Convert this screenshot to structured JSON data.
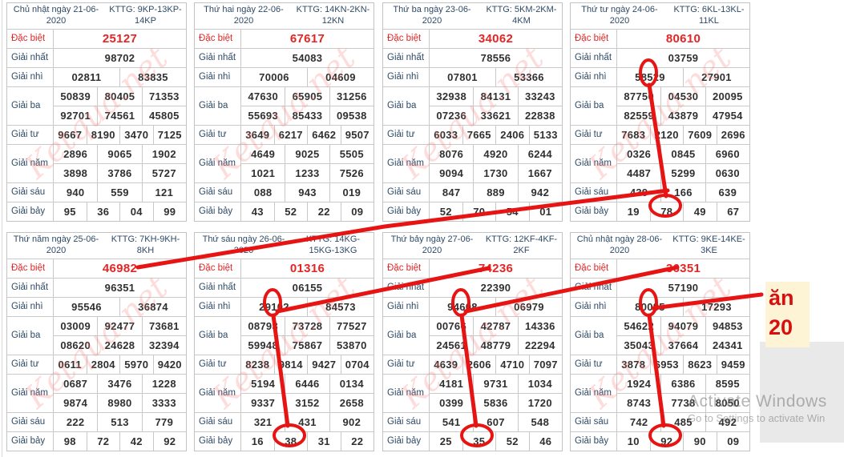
{
  "watermark": "Ketqua.net",
  "row_defs": [
    {
      "key": "db",
      "label": "Đặc biệt"
    },
    {
      "key": "nhat",
      "label": "Giải nhất"
    },
    {
      "key": "nhi",
      "label": "Giải nhì"
    },
    {
      "key": "ba",
      "label": "Giải ba"
    },
    {
      "key": "tu",
      "label": "Giải tư"
    },
    {
      "key": "nam",
      "label": "Giải năm"
    },
    {
      "key": "sau",
      "label": "Giải sáu"
    },
    {
      "key": "bay",
      "label": "Giải bảy"
    }
  ],
  "tables": [
    {
      "date": "Chủ nhật ngày 21-06-2020",
      "kttg": "KTTG: 9KP-13KP-14KP",
      "prizes": {
        "db": [
          [
            "25127"
          ]
        ],
        "nhat": [
          [
            "98702"
          ]
        ],
        "nhi": [
          [
            "02811",
            "83835"
          ]
        ],
        "ba": [
          [
            "50839",
            "80405",
            "71353"
          ],
          [
            "92701",
            "74561",
            "45805"
          ]
        ],
        "tu": [
          [
            "9667",
            "8190",
            "3470",
            "7125"
          ]
        ],
        "nam": [
          [
            "2896",
            "9065",
            "1902"
          ],
          [
            "3898",
            "3786",
            "5727"
          ]
        ],
        "sau": [
          [
            "940",
            "559",
            "121"
          ]
        ],
        "bay": [
          [
            "95",
            "36",
            "04",
            "99"
          ]
        ]
      }
    },
    {
      "date": "Thứ hai ngày 22-06-2020",
      "kttg": "KTTG: 14KN-2KN-12KN",
      "prizes": {
        "db": [
          [
            "67617"
          ]
        ],
        "nhat": [
          [
            "54083"
          ]
        ],
        "nhi": [
          [
            "70006",
            "04609"
          ]
        ],
        "ba": [
          [
            "47630",
            "65905",
            "31256"
          ],
          [
            "55693",
            "85433",
            "09538"
          ]
        ],
        "tu": [
          [
            "3649",
            "6217",
            "6462",
            "9507"
          ]
        ],
        "nam": [
          [
            "4649",
            "9025",
            "5505"
          ],
          [
            "1021",
            "1233",
            "7526"
          ]
        ],
        "sau": [
          [
            "088",
            "943",
            "019"
          ]
        ],
        "bay": [
          [
            "43",
            "52",
            "22",
            "09"
          ]
        ]
      }
    },
    {
      "date": "Thứ ba ngày 23-06-2020",
      "kttg": "KTTG: 5KM-2KM-4KM",
      "prizes": {
        "db": [
          [
            "34062"
          ]
        ],
        "nhat": [
          [
            "78556"
          ]
        ],
        "nhi": [
          [
            "07801",
            "53366"
          ]
        ],
        "ba": [
          [
            "32938",
            "84131",
            "33243"
          ],
          [
            "07236",
            "33621",
            "22838"
          ]
        ],
        "tu": [
          [
            "6033",
            "7665",
            "2406",
            "5133"
          ]
        ],
        "nam": [
          [
            "8076",
            "4920",
            "6244"
          ],
          [
            "9094",
            "1730",
            "1667"
          ]
        ],
        "sau": [
          [
            "847",
            "889",
            "942"
          ]
        ],
        "bay": [
          [
            "52",
            "70",
            "54",
            "01"
          ]
        ]
      }
    },
    {
      "date": "Thứ tư ngày 24-06-2020",
      "kttg": "KTTG: 6KL-13KL-11KL",
      "prizes": {
        "db": [
          [
            "80610"
          ]
        ],
        "nhat": [
          [
            "03759"
          ]
        ],
        "nhi": [
          [
            "58529",
            "27901"
          ]
        ],
        "ba": [
          [
            "87750",
            "04530",
            "20095"
          ],
          [
            "82559",
            "43879",
            "47954"
          ]
        ],
        "tu": [
          [
            "7683",
            "2120",
            "7609",
            "2696"
          ]
        ],
        "nam": [
          [
            "0326",
            "0845",
            "6960"
          ],
          [
            "4487",
            "5299",
            "0630"
          ]
        ],
        "sau": [
          [
            "439",
            "166",
            "639"
          ]
        ],
        "bay": [
          [
            "19",
            "78",
            "49",
            "67"
          ]
        ]
      }
    },
    {
      "date": "Thứ năm ngày 25-06-2020",
      "kttg": "KTTG: 7KH-9KH-8KH",
      "prizes": {
        "db": [
          [
            "46982"
          ]
        ],
        "nhat": [
          [
            "96351"
          ]
        ],
        "nhi": [
          [
            "95546",
            "36874"
          ]
        ],
        "ba": [
          [
            "03009",
            "92477",
            "73681"
          ],
          [
            "08620",
            "24628",
            "32394"
          ]
        ],
        "tu": [
          [
            "0611",
            "2804",
            "5970",
            "9420"
          ]
        ],
        "nam": [
          [
            "0687",
            "3476",
            "1228"
          ],
          [
            "9874",
            "8980",
            "3333"
          ]
        ],
        "sau": [
          [
            "222",
            "513",
            "779"
          ]
        ],
        "bay": [
          [
            "98",
            "72",
            "42",
            "92"
          ]
        ]
      }
    },
    {
      "date": "Thứ sáu ngày 26-06-2020",
      "kttg": "KTTG: 14KG-15KG-13KG",
      "prizes": {
        "db": [
          [
            "01316"
          ]
        ],
        "nhat": [
          [
            "06155"
          ]
        ],
        "nhi": [
          [
            "29102",
            "84573"
          ]
        ],
        "ba": [
          [
            "08793",
            "73728",
            "77527"
          ],
          [
            "59948",
            "75867",
            "53870"
          ]
        ],
        "tu": [
          [
            "8238",
            "9814",
            "9427",
            "0704"
          ]
        ],
        "nam": [
          [
            "5194",
            "6446",
            "0134"
          ],
          [
            "9337",
            "3152",
            "2658"
          ]
        ],
        "sau": [
          [
            "321",
            "431",
            "902"
          ]
        ],
        "bay": [
          [
            "16",
            "38",
            "31",
            "22"
          ]
        ]
      }
    },
    {
      "date": "Thứ bảy ngày 27-06-2020",
      "kttg": "KTTG: 12KF-4KF-2KF",
      "prizes": {
        "db": [
          [
            "74236"
          ]
        ],
        "nhat": [
          [
            "22390"
          ]
        ],
        "nhi": [
          [
            "94608",
            "06979"
          ]
        ],
        "ba": [
          [
            "00766",
            "42787",
            "14336"
          ],
          [
            "24561",
            "48779",
            "22294"
          ]
        ],
        "tu": [
          [
            "4639",
            "2606",
            "4710",
            "7097"
          ]
        ],
        "nam": [
          [
            "4181",
            "9731",
            "1034"
          ],
          [
            "0399",
            "5836",
            "1720"
          ]
        ],
        "sau": [
          [
            "541",
            "607",
            "548"
          ]
        ],
        "bay": [
          [
            "25",
            "35",
            "52",
            "46"
          ]
        ]
      }
    },
    {
      "date": "Chủ nhật ngày 28-06-2020",
      "kttg": "KTTG: 9KE-14KE-3KE",
      "prizes": {
        "db": [
          [
            "36351"
          ]
        ],
        "nhat": [
          [
            "57190"
          ]
        ],
        "nhi": [
          [
            "80085",
            "17293"
          ]
        ],
        "ba": [
          [
            "54622",
            "94079",
            "94853"
          ],
          [
            "35043",
            "37664",
            "24341"
          ]
        ],
        "tu": [
          [
            "3878",
            "6953",
            "8623",
            "9459"
          ]
        ],
        "nam": [
          [
            "1924",
            "6386",
            "8595"
          ],
          [
            "8743",
            "7738",
            "8050"
          ]
        ],
        "sau": [
          [
            "742",
            "485",
            "492"
          ]
        ],
        "bay": [
          [
            "10",
            "92",
            "90",
            "09"
          ]
        ]
      }
    }
  ],
  "annotation": {
    "color": "#e71414",
    "note_line1": "ăn",
    "note_line2": "20",
    "note_bg": "#fcf4d4",
    "note_text_color": "#d80f0f",
    "circled_giai_bay_values": [
      "78",
      "38",
      "35",
      "92"
    ]
  },
  "os_watermark": {
    "line1": "Activate Windows",
    "line2": "Go to Settings to activate Win"
  }
}
